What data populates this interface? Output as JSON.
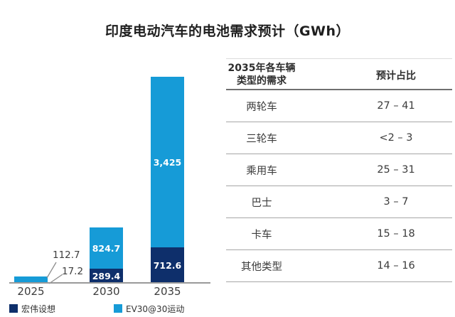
{
  "title": "印度电动汽车的电池需求预计（GWh）",
  "chart_data": {
    "type": "bar",
    "stacked": true,
    "unit": "GWh",
    "title": "印度电动汽车的电池需求预计（GWh）",
    "categories": [
      "2025",
      "2030",
      "2035"
    ],
    "series": [
      {
        "name": "宏伟设想",
        "color": "#0E2F6B",
        "values": [
          17.2,
          289.4,
          712.6
        ],
        "labels": [
          "17.2",
          "289.4",
          "712.6"
        ]
      },
      {
        "name": "EV30@30运动",
        "color": "#169BD7",
        "values": [
          112.7,
          824.7,
          3425
        ],
        "labels": [
          "112.7",
          "824.7",
          "3,425"
        ]
      }
    ],
    "ylim": [
      0,
      4200
    ],
    "grid": false,
    "legend_position": "bottom",
    "axis_color": "#9A9A9A",
    "bar_label_color": "#FFFFFF"
  },
  "table": {
    "headers": [
      "2035年各车辆\n类型的需求",
      "预计占比"
    ],
    "rows": [
      {
        "type": "两轮车",
        "share": "27 – 41"
      },
      {
        "type": "三轮车",
        "share": "<2 – 3"
      },
      {
        "type": "乘用车",
        "share": "25 – 31"
      },
      {
        "type": "巴士",
        "share": "3 – 7"
      },
      {
        "type": "卡车",
        "share": "15 – 18"
      },
      {
        "type": "其他类型",
        "share": "14 – 16"
      }
    ]
  }
}
